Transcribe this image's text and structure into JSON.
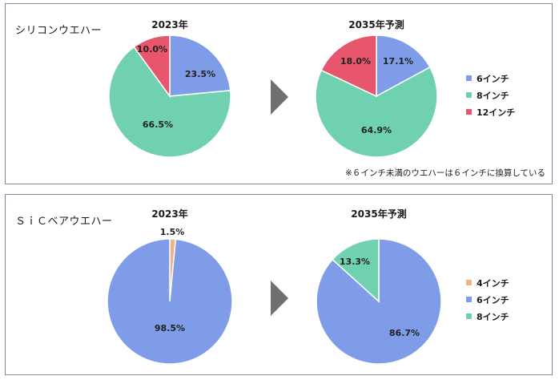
{
  "colors": {
    "inch4": "#f4b183",
    "inch6": "#7f9ce8",
    "inch8": "#6fd1b0",
    "inch12": "#e8566e",
    "arrow": "#707070"
  },
  "panels": [
    {
      "title": "シリコンウエハー",
      "note": "※６インチ未満のウエハーは６インチに換算している"
    },
    {
      "title": "ＳｉＣベアウエハー"
    }
  ],
  "chart_data": [
    {
      "type": "pie",
      "title": "2023年",
      "slices": [
        {
          "label": "6インチ",
          "value": 23.5,
          "display": "23.5%"
        },
        {
          "label": "8インチ",
          "value": 66.5,
          "display": "66.5%"
        },
        {
          "label": "12インチ",
          "value": 10.0,
          "display": "10.0%"
        }
      ]
    },
    {
      "type": "pie",
      "title": "2035年予測",
      "slices": [
        {
          "label": "6インチ",
          "value": 17.1,
          "display": "17.1%"
        },
        {
          "label": "8インチ",
          "value": 64.9,
          "display": "64.9%"
        },
        {
          "label": "12インチ",
          "value": 18.0,
          "display": "18.0%"
        }
      ],
      "legend": [
        "6インチ",
        "8インチ",
        "12インチ"
      ]
    },
    {
      "type": "pie",
      "title": "2023年",
      "slices": [
        {
          "label": "4インチ",
          "value": 1.5,
          "display": "1.5%"
        },
        {
          "label": "6インチ",
          "value": 98.5,
          "display": "98.5%"
        }
      ]
    },
    {
      "type": "pie",
      "title": "2035年予測",
      "slices": [
        {
          "label": "6インチ",
          "value": 86.7,
          "display": "86.7%"
        },
        {
          "label": "8インチ",
          "value": 13.3,
          "display": "13.3%"
        }
      ],
      "legend": [
        "4インチ",
        "6インチ",
        "8インチ"
      ]
    }
  ]
}
